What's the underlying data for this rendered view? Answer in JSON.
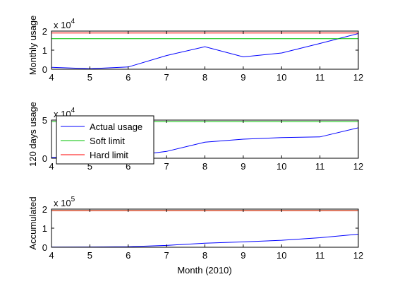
{
  "xlabel": "Month (2010)",
  "colors": {
    "actual": "#0000ff",
    "soft": "#00c000",
    "hard": "#ff0000",
    "axis": "#000000"
  },
  "legend": {
    "placement": "inside-top-left of middle panel",
    "items": [
      "Actual usage",
      "Soft limit",
      "Hard limit"
    ]
  },
  "chart_data": [
    {
      "type": "line",
      "ylabel": "Monthly usage",
      "exponent": "x 10",
      "exponent_power": "4",
      "x": [
        4,
        5,
        6,
        7,
        8,
        9,
        10,
        11,
        12
      ],
      "xticks": [
        "4",
        "5",
        "6",
        "7",
        "8",
        "9",
        "10",
        "11",
        "12"
      ],
      "yticks": [
        "0",
        "1",
        "2"
      ],
      "yticks_values": [
        0,
        10000,
        20000
      ],
      "xlim": [
        4,
        12
      ],
      "ylim": [
        0,
        20000
      ],
      "series": [
        {
          "name": "Actual usage",
          "values": [
            1000,
            300,
            1200,
            7200,
            11800,
            6500,
            8500,
            13500,
            18700
          ]
        },
        {
          "name": "Soft limit",
          "values": [
            16000,
            16000,
            16000,
            16000,
            16000,
            16000,
            16000,
            16000,
            16000
          ]
        },
        {
          "name": "Hard limit",
          "values": [
            19000,
            19000,
            19000,
            19000,
            19000,
            19000,
            19000,
            19000,
            19000
          ]
        }
      ]
    },
    {
      "type": "line",
      "ylabel": "120 days usage",
      "exponent": "x 10",
      "exponent_power": "4",
      "x": [
        4,
        5,
        6,
        7,
        8,
        9,
        10,
        11,
        12
      ],
      "xticks": [
        "4",
        "5",
        "6",
        "7",
        "8",
        "9",
        "10",
        "11",
        "12"
      ],
      "yticks": [
        "0",
        "5"
      ],
      "yticks_values": [
        0,
        50000
      ],
      "xlim": [
        4,
        12
      ],
      "ylim": [
        0,
        50000
      ],
      "series": [
        {
          "name": "Actual usage",
          "values": [
            1000,
            1300,
            2500,
            9000,
            21000,
            25000,
            27000,
            28000,
            40000
          ]
        },
        {
          "name": "Soft limit",
          "values": [
            48000,
            48000,
            48000,
            48000,
            48000,
            48000,
            48000,
            48000,
            48000
          ]
        },
        {
          "name": "Hard limit",
          "values": [
            57000,
            57000,
            57000,
            57000,
            57000,
            57000,
            57000,
            57000,
            57000
          ]
        }
      ]
    },
    {
      "type": "line",
      "ylabel": "Accumulated",
      "exponent": "x 10",
      "exponent_power": "5",
      "x": [
        4,
        5,
        6,
        7,
        8,
        9,
        10,
        11,
        12
      ],
      "xticks": [
        "4",
        "5",
        "6",
        "7",
        "8",
        "9",
        "10",
        "11",
        "12"
      ],
      "yticks": [
        "0",
        "1",
        "2"
      ],
      "yticks_values": [
        0,
        100000,
        200000
      ],
      "xlim": [
        4,
        12
      ],
      "ylim": [
        0,
        200000
      ],
      "series": [
        {
          "name": "Actual usage",
          "values": [
            1000,
            1300,
            2500,
            9700,
            21500,
            28000,
            36500,
            50000,
            68700
          ]
        },
        {
          "name": "Soft limit",
          "values": [
            192000,
            192000,
            192000,
            192000,
            192000,
            192000,
            192000,
            192000,
            192000
          ]
        },
        {
          "name": "Hard limit",
          "values": [
            192000,
            192000,
            192000,
            192000,
            192000,
            192000,
            192000,
            192000,
            192000
          ]
        }
      ]
    }
  ]
}
